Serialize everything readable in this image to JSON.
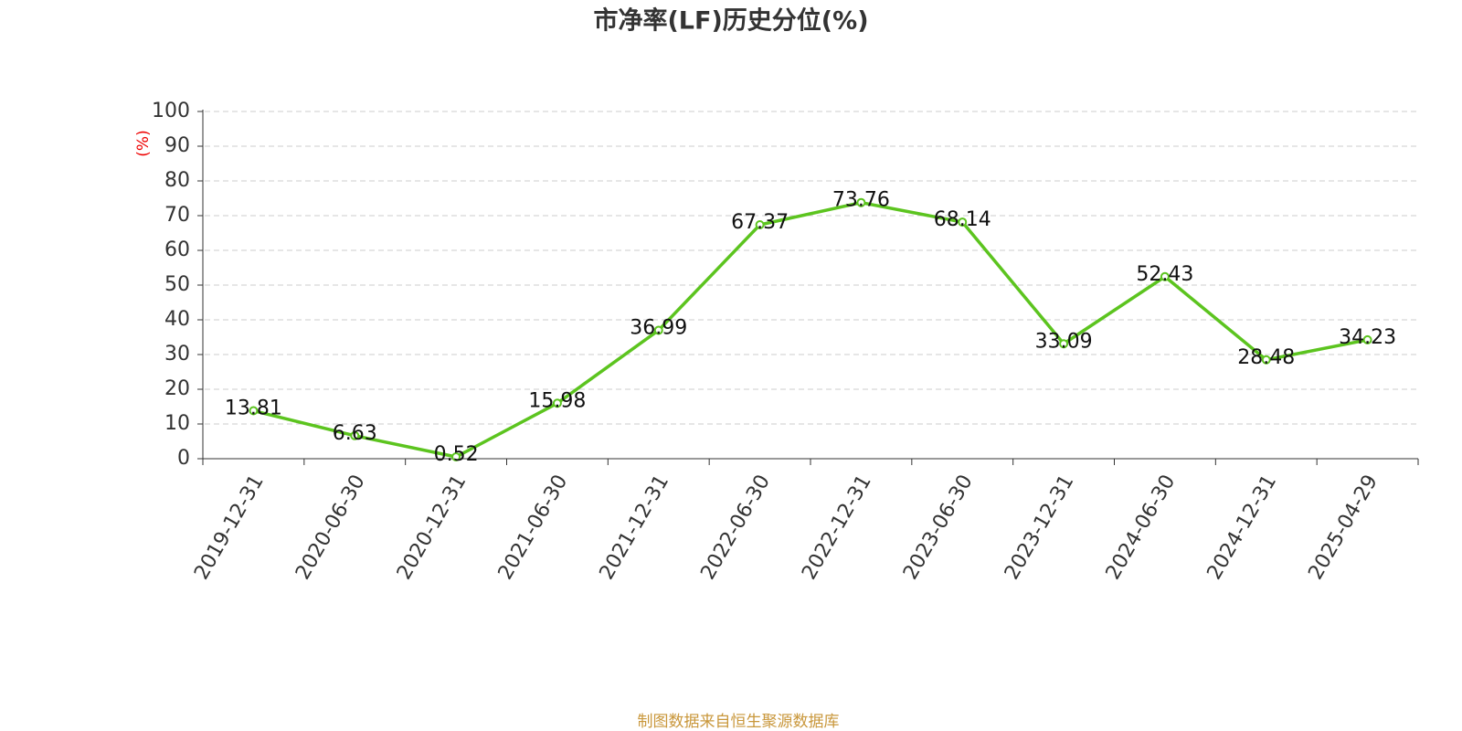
{
  "chart_data": {
    "type": "line",
    "title": "市净率(LF)历史分位(%)",
    "y_label": "(%)",
    "categories": [
      "2019-12-31",
      "2020-06-30",
      "2020-12-31",
      "2021-06-30",
      "2021-12-31",
      "2022-06-30",
      "2022-12-31",
      "2023-06-30",
      "2023-12-31",
      "2024-06-30",
      "2024-12-31",
      "2025-04-29"
    ],
    "values": [
      13.81,
      6.63,
      0.52,
      15.98,
      36.99,
      67.37,
      73.76,
      68.14,
      33.09,
      52.43,
      28.48,
      34.23
    ],
    "color": "#5cc41f",
    "ylim": [
      0,
      100
    ],
    "yticks": [
      0,
      10,
      20,
      30,
      40,
      50,
      60,
      70,
      80,
      90,
      100
    ],
    "grid": true,
    "source": "制图数据来自恒生聚源数据库"
  }
}
